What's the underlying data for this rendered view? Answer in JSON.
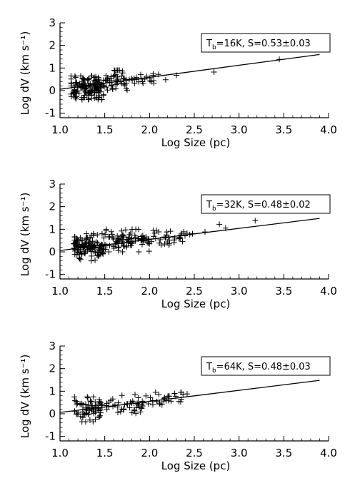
{
  "chart_data": [
    {
      "type": "scatter",
      "xlabel": "Log Size (pc)",
      "ylabel": "Log dV (km s⁻¹)",
      "xlim": [
        1.0,
        4.0
      ],
      "ylim": [
        -1.2,
        3.0
      ],
      "xticks": [
        "1.0",
        "1.5",
        "2.0",
        "2.5",
        "3.0",
        "3.5",
        "4.0"
      ],
      "yticks": [
        "-1",
        "0",
        "1",
        "2",
        "3"
      ],
      "legend": {
        "T_sym": "T",
        "T_sub": "b",
        "text": "=16K, S=0.53±0.03",
        "placement": "top-right"
      },
      "fit_line": {
        "x": [
          1.0,
          3.9
        ],
        "y": [
          0.06,
          1.6
        ]
      },
      "seed": 16,
      "points": [
        [
          3.45,
          1.38
        ],
        [
          2.72,
          0.82
        ],
        [
          2.3,
          0.68
        ],
        [
          2.18,
          0.48
        ],
        [
          2.1,
          0.72
        ],
        [
          2.04,
          0.68
        ]
      ],
      "clusters": [
        {
          "x": [
            1.12,
            1.5
          ],
          "y": [
            -0.4,
            0.65
          ],
          "n": 150
        },
        {
          "x": [
            1.5,
            1.75
          ],
          "y": [
            0.0,
            0.9
          ],
          "n": 45
        },
        {
          "x": [
            1.75,
            2.05
          ],
          "y": [
            0.3,
            0.8
          ],
          "n": 20
        }
      ]
    },
    {
      "type": "scatter",
      "xlabel": "Log Size (pc)",
      "ylabel": "Log dV (km s⁻¹)",
      "xlim": [
        1.0,
        4.0
      ],
      "ylim": [
        -1.2,
        3.0
      ],
      "xticks": [
        "1.0",
        "1.5",
        "2.0",
        "2.5",
        "3.0",
        "3.5",
        "4.0"
      ],
      "yticks": [
        "-1",
        "0",
        "1",
        "2",
        "3"
      ],
      "legend": {
        "T_sym": "T",
        "T_sub": "b",
        "text": "=32K, S=0.48±0.02",
        "placement": "top-right"
      },
      "fit_line": {
        "x": [
          1.0,
          3.9
        ],
        "y": [
          0.06,
          1.48
        ]
      },
      "seed": 32,
      "points": [
        [
          3.18,
          1.38
        ],
        [
          2.85,
          1.05
        ],
        [
          2.78,
          1.22
        ],
        [
          2.62,
          0.88
        ],
        [
          2.48,
          0.8
        ]
      ],
      "clusters": [
        {
          "x": [
            1.15,
            1.5
          ],
          "y": [
            -0.4,
            0.8
          ],
          "n": 130
        },
        {
          "x": [
            1.5,
            2.0
          ],
          "y": [
            0.0,
            1.0
          ],
          "n": 90
        },
        {
          "x": [
            2.0,
            2.45
          ],
          "y": [
            0.3,
            0.95
          ],
          "n": 35
        }
      ]
    },
    {
      "type": "scatter",
      "xlabel": "Log Size (pc)",
      "ylabel": "Log dV (km s⁻¹)",
      "xlim": [
        1.0,
        4.0
      ],
      "ylim": [
        -1.2,
        3.0
      ],
      "xticks": [
        "1.0",
        "1.5",
        "2.0",
        "2.5",
        "3.0",
        "3.5",
        "4.0"
      ],
      "yticks": [
        "-1",
        "0",
        "1",
        "2",
        "3"
      ],
      "legend": {
        "T_sym": "T",
        "T_sub": "b",
        "text": "=64K, S=0.48±0.03",
        "placement": "top-right"
      },
      "fit_line": {
        "x": [
          1.0,
          3.9
        ],
        "y": [
          0.06,
          1.48
        ]
      },
      "seed": 64,
      "points": [
        [
          2.42,
          0.88
        ],
        [
          2.35,
          0.95
        ],
        [
          2.28,
          0.9
        ],
        [
          2.22,
          0.78
        ]
      ],
      "clusters": [
        {
          "x": [
            1.15,
            1.5
          ],
          "y": [
            -0.35,
            0.75
          ],
          "n": 70
        },
        {
          "x": [
            1.5,
            1.95
          ],
          "y": [
            0.0,
            0.85
          ],
          "n": 45
        },
        {
          "x": [
            1.95,
            2.38
          ],
          "y": [
            0.3,
            0.95
          ],
          "n": 25
        }
      ]
    }
  ]
}
